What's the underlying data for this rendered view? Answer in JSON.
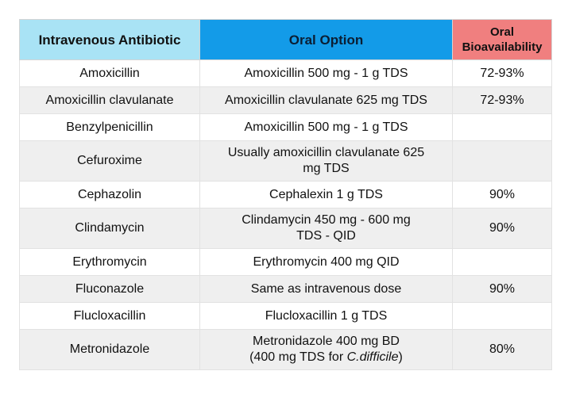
{
  "table": {
    "headers": {
      "col1": "Intravenous Antibiotic",
      "col2": "Oral Option",
      "col3_line1": "Oral",
      "col3_line2": "Bioavailability"
    },
    "rows": [
      {
        "iv": "Amoxicillin",
        "oral": "Amoxicillin 500 mg - 1 g TDS",
        "bio": "72-93%"
      },
      {
        "iv": "Amoxicillin clavulanate",
        "oral": "Amoxicillin clavulanate 625 mg TDS",
        "bio": "72-93%"
      },
      {
        "iv": "Benzylpenicillin",
        "oral": "Amoxicillin 500 mg - 1 g TDS",
        "bio": ""
      },
      {
        "iv": "Cefuroxime",
        "oral_line1": "Usually amoxicillin clavulanate 625",
        "oral_line2": "mg TDS",
        "bio": ""
      },
      {
        "iv": "Cephazolin",
        "oral": "Cephalexin 1 g TDS",
        "bio": "90%"
      },
      {
        "iv": "Clindamycin",
        "oral_line1": "Clindamycin 450 mg - 600 mg",
        "oral_line2": "TDS - QID",
        "bio": "90%"
      },
      {
        "iv": "Erythromycin",
        "oral": "Erythromycin 400 mg QID",
        "bio": ""
      },
      {
        "iv": "Fluconazole",
        "oral": "Same as intravenous dose",
        "bio": "90%"
      },
      {
        "iv": "Flucloxacillin",
        "oral": "Flucloxacillin 1 g TDS",
        "bio": ""
      },
      {
        "iv": "Metronidazole",
        "oral_line1": "Metronidazole 400 mg BD",
        "oral_line2a": "(400 mg TDS for ",
        "oral_line2b": "C.difficile",
        "oral_line2c": ")",
        "bio": "80%"
      }
    ]
  }
}
